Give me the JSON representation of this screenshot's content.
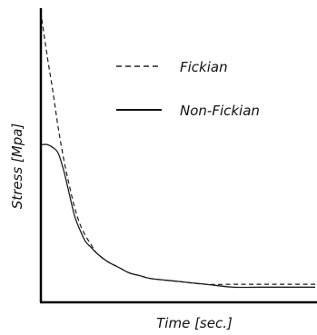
{
  "chart_data": {
    "type": "line",
    "xlabel": "Time [sec.]",
    "ylabel": "Stress [Mpa]",
    "grid": false,
    "legend_position": "top-right",
    "series": [
      {
        "name": "Fickian",
        "style": "dashed",
        "x": [
          0,
          2,
          4,
          6,
          8,
          10,
          12,
          14,
          16,
          18,
          20,
          24,
          28,
          32,
          36,
          40,
          50,
          60,
          70,
          80,
          90,
          100
        ],
        "y": [
          0.99,
          0.86,
          0.74,
          0.61,
          0.5,
          0.41,
          0.33,
          0.27,
          0.23,
          0.2,
          0.17,
          0.14,
          0.12,
          0.1,
          0.09,
          0.08,
          0.07,
          0.06,
          0.06,
          0.06,
          0.06,
          0.06
        ]
      },
      {
        "name": "Non-Fickian",
        "style": "solid",
        "x": [
          0,
          2,
          4,
          6,
          8,
          10,
          12,
          14,
          16,
          18,
          20,
          24,
          28,
          32,
          36,
          40,
          50,
          60,
          70,
          80,
          90,
          100
        ],
        "y": [
          0.55,
          0.55,
          0.54,
          0.52,
          0.46,
          0.38,
          0.3,
          0.25,
          0.21,
          0.19,
          0.17,
          0.14,
          0.12,
          0.1,
          0.09,
          0.08,
          0.07,
          0.06,
          0.05,
          0.05,
          0.05,
          0.05
        ]
      }
    ],
    "xlim": [
      0,
      100
    ],
    "ylim": [
      0,
      1
    ]
  },
  "colors": {
    "axis": "#000000",
    "line": "#1a1a1a"
  }
}
